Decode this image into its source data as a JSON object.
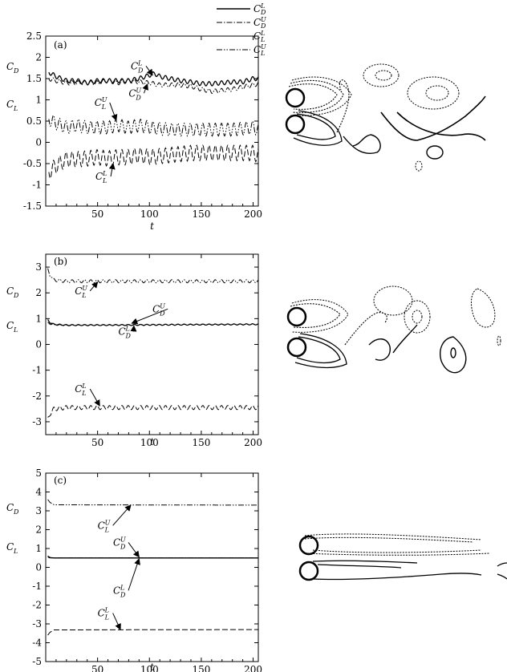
{
  "legend": [
    {
      "symbol": "C",
      "sup": "L",
      "sub": "D",
      "dash": "solid"
    },
    {
      "symbol": "C",
      "sup": "U",
      "sub": "D",
      "dash": "dashdot"
    },
    {
      "symbol": "C",
      "sup": "L",
      "sub": "L",
      "dash": "dashed"
    },
    {
      "symbol": "C",
      "sup": "U",
      "sub": "L",
      "dash": "dashdotdot"
    }
  ],
  "chart_data": [
    {
      "type": "line",
      "panel_label": "(a)",
      "xlabel": "t",
      "ylabel_parts": [
        {
          "base": "C",
          "sub": "D"
        },
        {
          "base": "C",
          "sub": "L"
        }
      ],
      "xlim": [
        0,
        205
      ],
      "ylim": [
        -1.5,
        2.5
      ],
      "xticks": [
        50,
        100,
        150,
        200
      ],
      "yticks": [
        -1.5,
        -1,
        -0.5,
        0,
        0.5,
        1,
        1.5,
        2,
        2.5
      ],
      "ytick_labels": [
        "-1.5",
        "-1",
        "-0.5",
        "0",
        "0.5",
        "1",
        "1.5",
        "2",
        "2.5"
      ],
      "series": [
        {
          "key": "CD_L",
          "dash": "solid",
          "x": [
            3,
            10,
            20,
            30,
            40,
            50,
            60,
            70,
            80,
            90,
            100,
            105,
            110,
            120,
            130,
            140,
            150,
            160,
            170,
            180,
            190,
            200,
            205
          ],
          "y": [
            1.65,
            1.55,
            1.45,
            1.45,
            1.4,
            1.45,
            1.45,
            1.45,
            1.45,
            1.5,
            1.58,
            1.62,
            1.55,
            1.5,
            1.45,
            1.42,
            1.38,
            1.38,
            1.4,
            1.42,
            1.42,
            1.5,
            1.5
          ],
          "amp": 0.05,
          "period": 6
        },
        {
          "key": "CD_U",
          "dash": "dashdot",
          "x": [
            3,
            10,
            20,
            30,
            40,
            50,
            60,
            70,
            80,
            90,
            100,
            110,
            120,
            130,
            140,
            150,
            160,
            170,
            180,
            190,
            200,
            205
          ],
          "y": [
            1.5,
            1.45,
            1.4,
            1.4,
            1.4,
            1.4,
            1.45,
            1.4,
            1.45,
            1.42,
            1.4,
            1.35,
            1.35,
            1.35,
            1.32,
            1.25,
            1.2,
            1.22,
            1.25,
            1.3,
            1.35,
            1.38
          ],
          "amp": 0.05,
          "period": 6
        },
        {
          "key": "CL_L",
          "dash": "dashed",
          "x": [
            3,
            10,
            20,
            30,
            40,
            50,
            60,
            70,
            80,
            90,
            100,
            120,
            140,
            160,
            180,
            200,
            205
          ],
          "y": [
            -0.7,
            -0.55,
            -0.4,
            -0.4,
            -0.38,
            -0.35,
            -0.38,
            -0.35,
            -0.35,
            -0.3,
            -0.35,
            -0.3,
            -0.25,
            -0.25,
            -0.25,
            -0.25,
            -0.3
          ],
          "amp": 0.18,
          "period": 6
        },
        {
          "key": "CL_U",
          "dash": "dashdotdot",
          "x": [
            3,
            10,
            20,
            30,
            40,
            50,
            60,
            70,
            80,
            90,
            100,
            120,
            140,
            160,
            180,
            200,
            205
          ],
          "y": [
            0.55,
            0.45,
            0.35,
            0.4,
            0.35,
            0.35,
            0.35,
            0.4,
            0.35,
            0.4,
            0.35,
            0.3,
            0.3,
            0.3,
            0.3,
            0.35,
            0.3
          ],
          "amp": 0.15,
          "period": 6
        }
      ],
      "annotations": [
        {
          "base": "C",
          "sup": "L",
          "sub": "D",
          "tx": 82,
          "ty": 1.72,
          "ax": 103,
          "ay": 1.58
        },
        {
          "base": "C",
          "sup": "U",
          "sub": "D",
          "tx": 80,
          "ty": 1.08,
          "ax": 98,
          "ay": 1.37
        },
        {
          "base": "C",
          "sup": "U",
          "sub": "L",
          "tx": 47,
          "ty": 0.86,
          "ax": 68,
          "ay": 0.52
        },
        {
          "base": "C",
          "sup": "L",
          "sub": "L",
          "tx": 48,
          "ty": -0.88,
          "ax": 65,
          "ay": -0.5
        }
      ]
    },
    {
      "type": "line",
      "panel_label": "(b)",
      "xlabel": "t",
      "ylabel_parts": [
        {
          "base": "C",
          "sub": "D"
        },
        {
          "base": "C",
          "sub": "L"
        }
      ],
      "xlim": [
        0,
        205
      ],
      "ylim": [
        -3.5,
        3.5
      ],
      "xticks": [
        50,
        100,
        150,
        200
      ],
      "yticks": [
        -3,
        -2,
        -1,
        0,
        1,
        2,
        3
      ],
      "ytick_labels": [
        "-3",
        "-2",
        "-1",
        "0",
        "1",
        "2",
        "3"
      ],
      "series": [
        {
          "key": "CD_L",
          "dash": "solid",
          "x": [
            2,
            4,
            8,
            20,
            60,
            100,
            150,
            205
          ],
          "y": [
            0.95,
            0.85,
            0.78,
            0.75,
            0.75,
            0.76,
            0.77,
            0.78
          ],
          "amp": 0.02,
          "period": 6
        },
        {
          "key": "CD_U",
          "dash": "dashdot",
          "x": [
            2,
            4,
            8,
            20,
            60,
            100,
            150,
            205
          ],
          "y": [
            0.85,
            0.8,
            0.76,
            0.74,
            0.75,
            0.76,
            0.77,
            0.78
          ],
          "amp": 0.02,
          "period": 6
        },
        {
          "key": "CL_U",
          "dash": "dashdotdot",
          "x": [
            2,
            4,
            8,
            20,
            60,
            100,
            150,
            205
          ],
          "y": [
            2.9,
            2.7,
            2.5,
            2.45,
            2.45,
            2.45,
            2.45,
            2.45
          ],
          "amp": 0.06,
          "period": 6
        },
        {
          "key": "CL_L",
          "dash": "dashed",
          "x": [
            2,
            4,
            8,
            20,
            60,
            100,
            150,
            205
          ],
          "y": [
            -2.9,
            -2.7,
            -2.5,
            -2.45,
            -2.45,
            -2.45,
            -2.45,
            -2.45
          ],
          "amp": 0.08,
          "period": 6
        }
      ],
      "annotations": [
        {
          "base": "C",
          "sup": "U",
          "sub": "L",
          "tx": 28,
          "ty": 1.95,
          "ax": 50,
          "ay": 2.42
        },
        {
          "base": "C",
          "sup": "U",
          "sub": "D",
          "tx": 103,
          "ty": 1.25,
          "ax": 83,
          "ay": 0.82
        },
        {
          "base": "C",
          "sup": "L",
          "sub": "D",
          "tx": 70,
          "ty": 0.38,
          "ax": 85,
          "ay": 0.72
        },
        {
          "base": "C",
          "sup": "L",
          "sub": "L",
          "tx": 28,
          "ty": -1.85,
          "ax": 52,
          "ay": -2.38
        }
      ]
    },
    {
      "type": "line",
      "panel_label": "(c)",
      "xlabel": "t",
      "ylabel_parts": [
        {
          "base": "C",
          "sub": "D"
        },
        {
          "base": "C",
          "sub": "L"
        }
      ],
      "xlim": [
        0,
        205
      ],
      "ylim": [
        -5,
        5
      ],
      "xticks": [
        50,
        100,
        150,
        200
      ],
      "yticks": [
        -5,
        -4,
        -3,
        -2,
        -1,
        0,
        1,
        2,
        3,
        4,
        5
      ],
      "ytick_labels": [
        "-5",
        "-4",
        "-3",
        "-2",
        "-1",
        "0",
        "1",
        "2",
        "3",
        "4",
        "5"
      ],
      "series": [
        {
          "key": "CD_L",
          "dash": "solid",
          "x": [
            2,
            4,
            8,
            205
          ],
          "y": [
            0.6,
            0.52,
            0.5,
            0.5
          ],
          "amp": 0.0,
          "period": 6
        },
        {
          "key": "CD_U",
          "dash": "dashdot",
          "x": [
            2,
            4,
            8,
            205
          ],
          "y": [
            0.55,
            0.5,
            0.5,
            0.5
          ],
          "amp": 0.0,
          "period": 6
        },
        {
          "key": "CL_U",
          "dash": "dashdotdot",
          "x": [
            2,
            4,
            8,
            205
          ],
          "y": [
            3.6,
            3.45,
            3.32,
            3.3
          ],
          "amp": 0.0,
          "period": 6
        },
        {
          "key": "CL_L",
          "dash": "dashed",
          "x": [
            2,
            4,
            8,
            205
          ],
          "y": [
            -3.6,
            -3.45,
            -3.32,
            -3.3
          ],
          "amp": 0.0,
          "period": 6
        }
      ],
      "annotations": [
        {
          "base": "C",
          "sup": "U",
          "sub": "L",
          "tx": 50,
          "ty": 2.05,
          "ax": 82,
          "ay": 3.3
        },
        {
          "base": "C",
          "sup": "U",
          "sub": "D",
          "tx": 65,
          "ty": 1.15,
          "ax": 90,
          "ay": 0.55
        },
        {
          "base": "C",
          "sup": "L",
          "sub": "D",
          "tx": 65,
          "ty": -1.4,
          "ax": 90,
          "ay": 0.45
        },
        {
          "base": "C",
          "sup": "L",
          "sub": "L",
          "tx": 50,
          "ty": -2.6,
          "ax": 72,
          "ay": -3.3
        }
      ]
    }
  ]
}
